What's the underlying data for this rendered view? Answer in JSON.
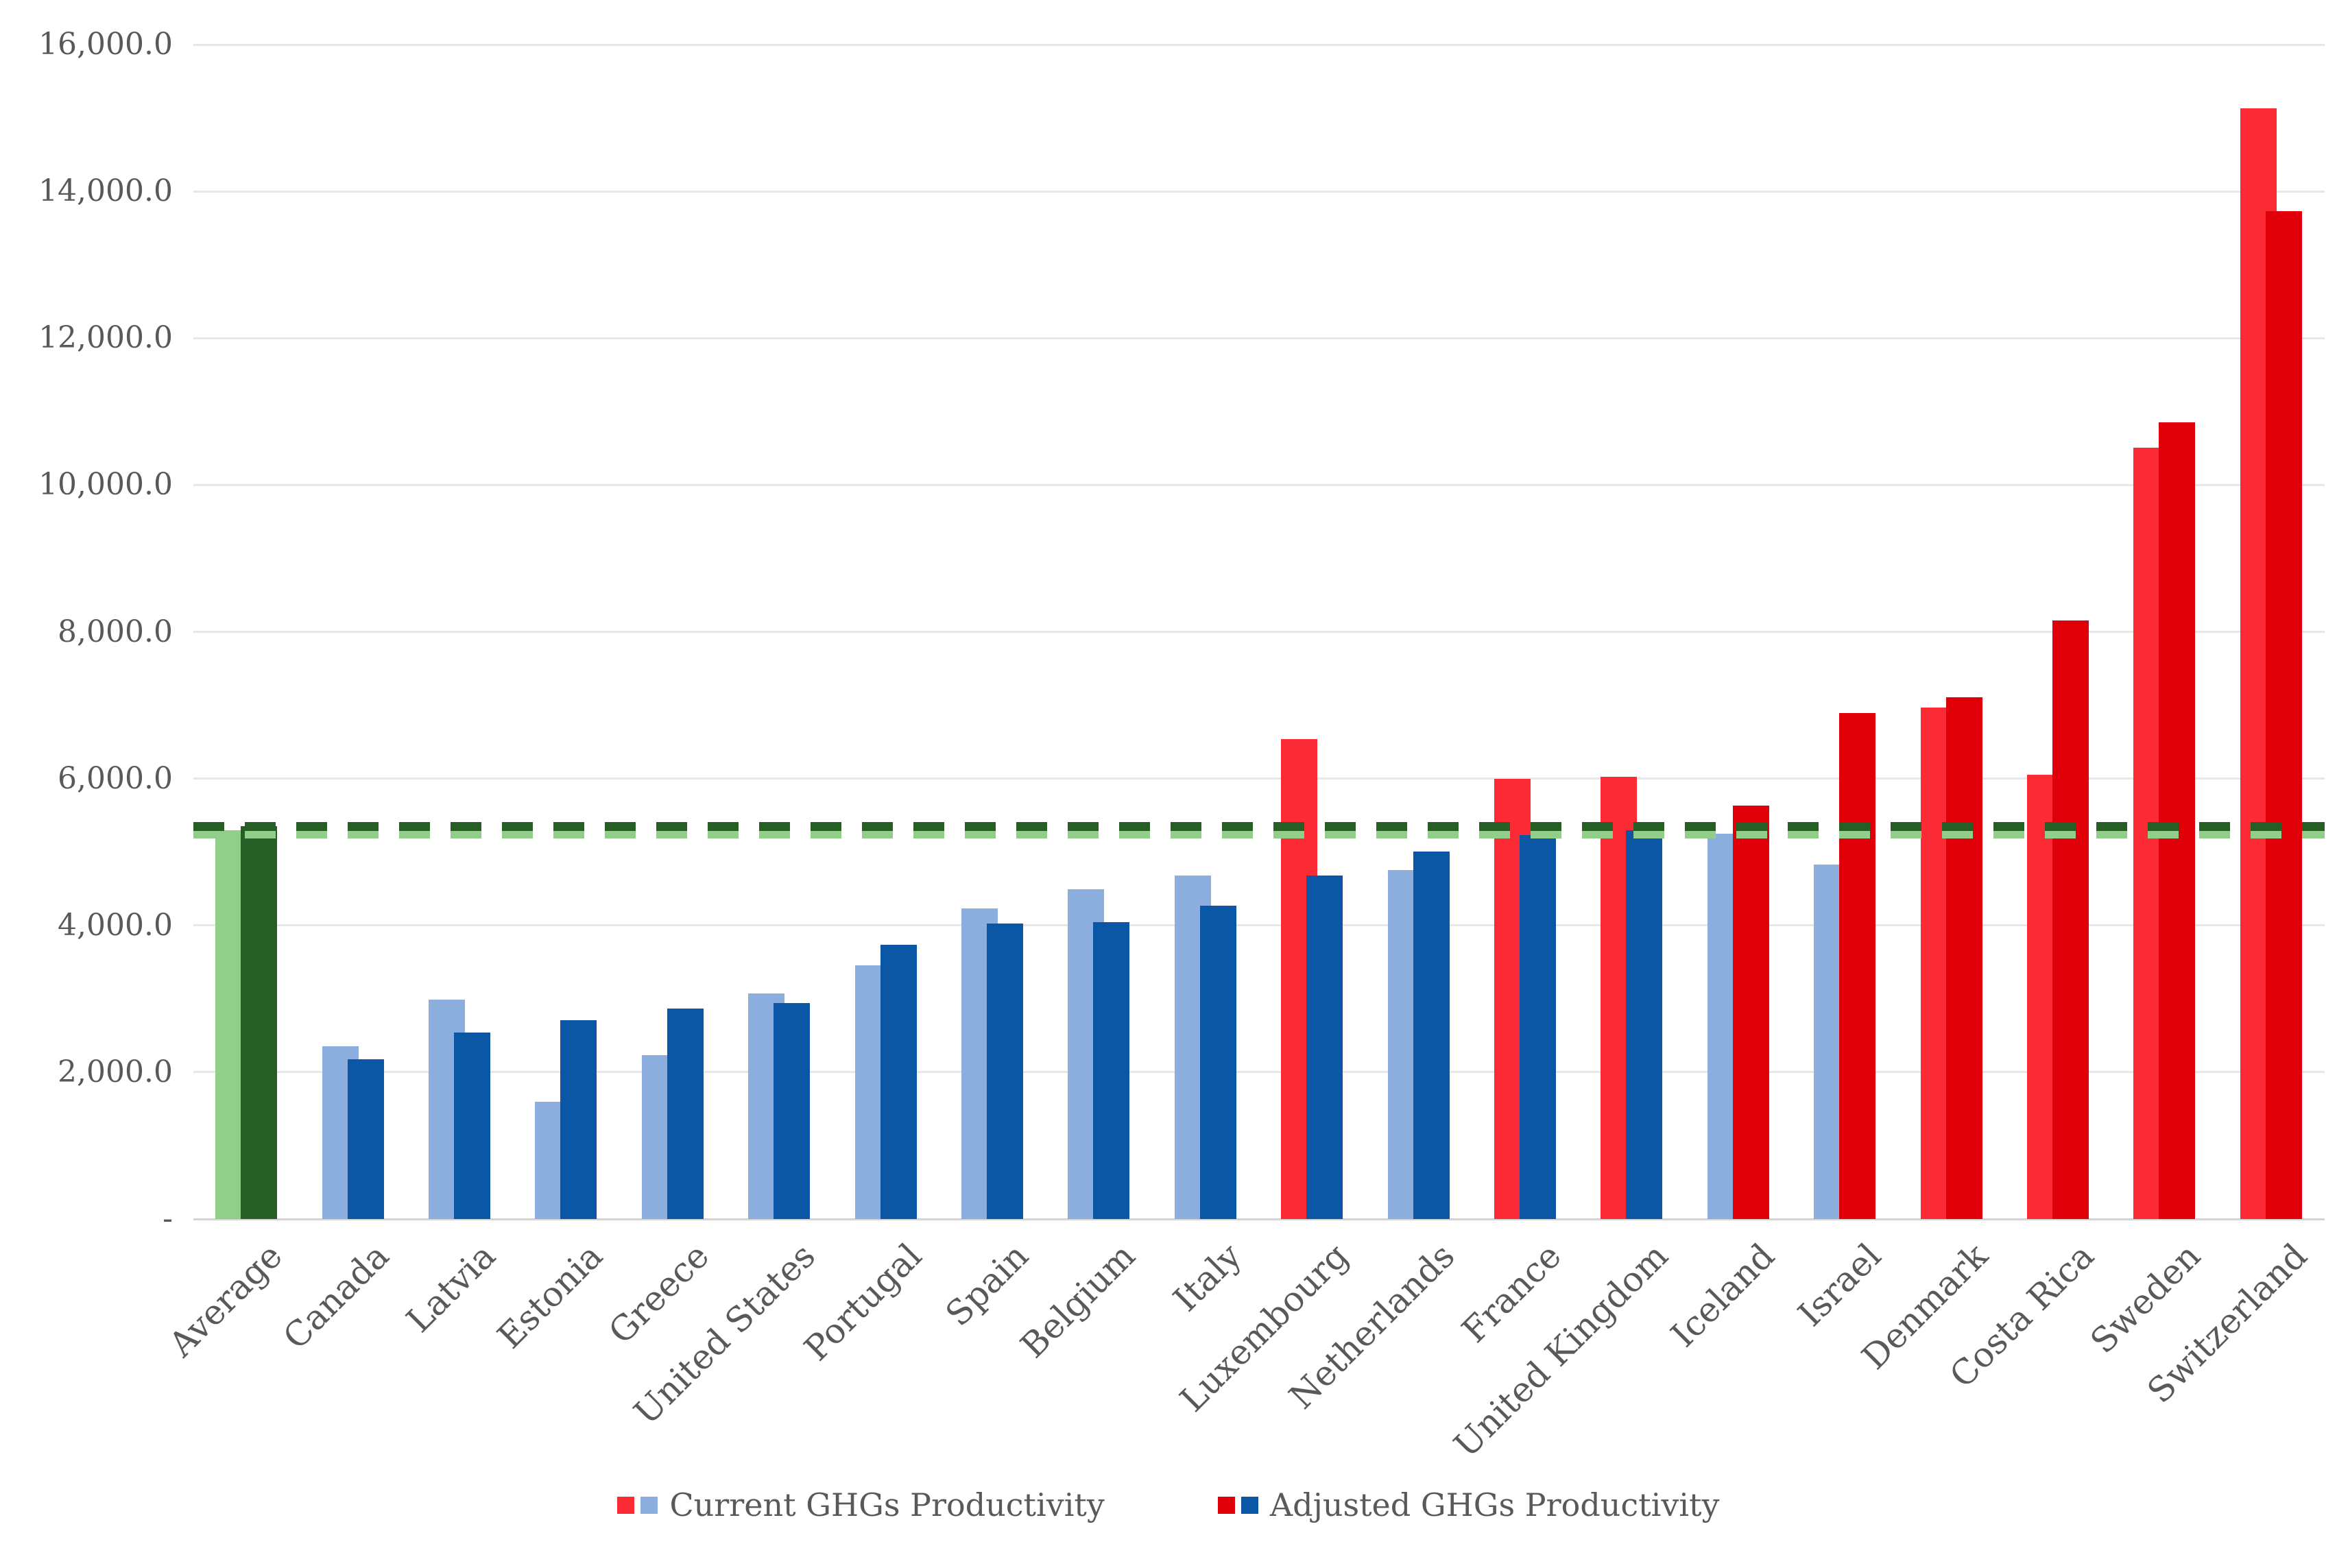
{
  "chart_data": {
    "type": "bar",
    "title": "",
    "categories": [
      "Average",
      "Canada",
      "Latvia",
      "Estonia",
      "Greece",
      "United States",
      "Portugal",
      "Spain",
      "Belgium",
      "Italy",
      "Luxembourg",
      "Netherlands",
      "France",
      "United Kingdom",
      "Iceland",
      "Israel",
      "Denmark",
      "Costa Rica",
      "Sweden",
      "Switzerland"
    ],
    "series": [
      {
        "name": "Current GHGs Productivity",
        "values": [
          5300,
          2350,
          2990,
          1600,
          2230,
          3070,
          3460,
          4230,
          4490,
          4680,
          6540,
          4750,
          6000,
          6020,
          5250,
          4830,
          6970,
          6050,
          10510,
          15130
        ],
        "colors": [
          "#90CE8A",
          "#8BAEDF",
          "#8BAEDF",
          "#8BAEDF",
          "#8BAEDF",
          "#8BAEDF",
          "#8BAEDF",
          "#8BAEDF",
          "#8BAEDF",
          "#8BAEDF",
          "#FB2B35",
          "#8BAEDF",
          "#FB2B35",
          "#FB2B35",
          "#8BAEDF",
          "#8BAEDF",
          "#FB2B35",
          "#FB2B35",
          "#FB2B35",
          "#FB2B35"
        ]
      },
      {
        "name": "Adjusted GHGs Productivity",
        "values": [
          5350,
          2180,
          2540,
          2710,
          2870,
          2940,
          3740,
          4030,
          4040,
          4270,
          4680,
          5010,
          5230,
          5300,
          5630,
          6890,
          7110,
          8150,
          10850,
          13730
        ],
        "colors": [
          "#265E26",
          "#0C57A5",
          "#0C57A5",
          "#0C57A5",
          "#0C57A5",
          "#0C57A5",
          "#0C57A5",
          "#0C57A5",
          "#0C57A5",
          "#0C57A5",
          "#0C57A5",
          "#0C57A5",
          "#0C57A5",
          "#0C57A5",
          "#DF000A",
          "#DF000A",
          "#DF000A",
          "#DF000A",
          "#DF000A",
          "#DF000A"
        ]
      }
    ],
    "average_lines": [
      {
        "name": "Average current (dashed)",
        "value": 5300,
        "color": "#90CE8A",
        "style": "dashed"
      },
      {
        "name": "Average adjusted (dashed)",
        "value": 5350,
        "color": "#265E26",
        "style": "dashed"
      }
    ],
    "y_axis": {
      "min": 0,
      "max": 16000,
      "tick_step": 2000,
      "tick_labels": [
        "-",
        "2,000.0",
        "4,000.0",
        "6,000.0",
        "8,000.0",
        "10,000.0",
        "12,000.0",
        "14,000.0",
        "16,000.0"
      ]
    },
    "x_axis": {
      "label": ""
    },
    "grid": "horizontal",
    "legend_position": "bottom",
    "palette": {
      "current_below_avg": "#8BAEDF",
      "current_above_avg": "#FB2B35",
      "adjusted_below_avg": "#0C57A5",
      "adjusted_above_avg": "#DF000A",
      "average_current": "#90CE8A",
      "average_adjusted": "#265E26",
      "gridline": "#E7E7E7",
      "axis_line": "#D5D5D5",
      "text": "#595959"
    }
  },
  "legend": {
    "items": [
      {
        "label": "Current GHGs Productivity",
        "swatches": [
          "#FB2B35",
          "#8BAEDF"
        ]
      },
      {
        "label": "Adjusted GHGs Productivity",
        "swatches": [
          "#DF000A",
          "#0C57A5"
        ]
      }
    ]
  }
}
